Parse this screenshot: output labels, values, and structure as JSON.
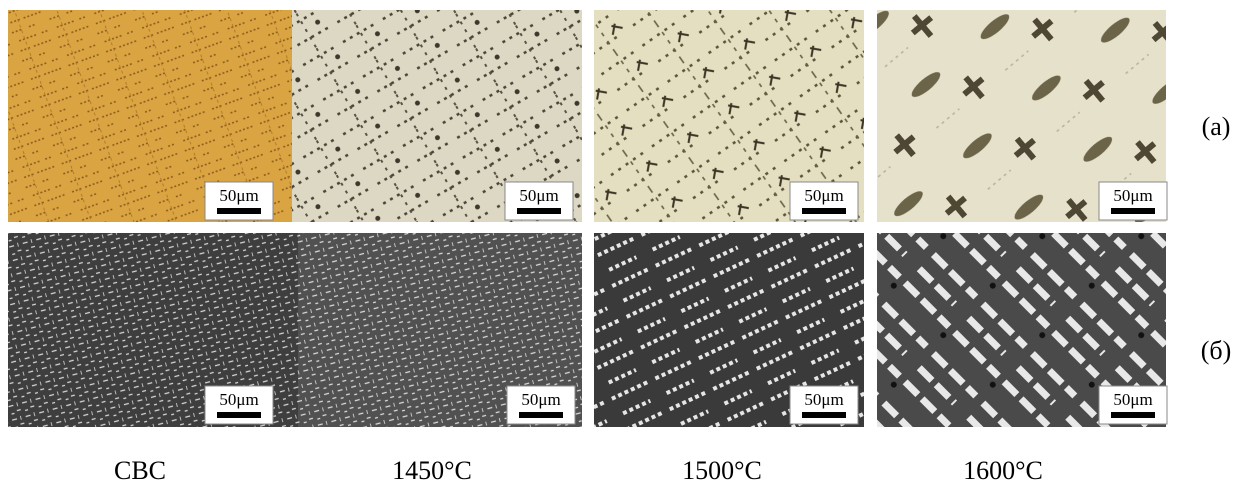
{
  "rows": [
    {
      "label": "(a)",
      "scale_bars": [
        "50μm",
        "50μm",
        "50μm",
        "50μm"
      ]
    },
    {
      "label": "(б)",
      "scale_bars": [
        "50μm",
        "50μm",
        "50μm",
        "50μm"
      ]
    }
  ],
  "columns": [
    "CBC",
    "1450°C",
    "1500°C",
    "1600°C"
  ]
}
